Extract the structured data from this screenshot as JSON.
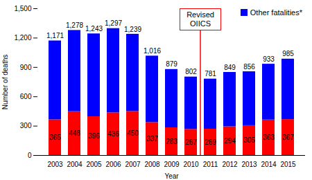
{
  "chart_data": {
    "type": "bar",
    "stacked": true,
    "x_label": "Year",
    "y_label": "Number of deaths",
    "categories": [
      "2003",
      "2004",
      "2005",
      "2006",
      "2007",
      "2008",
      "2009",
      "2010",
      "2011",
      "2012",
      "2013",
      "2014",
      "2015"
    ],
    "series": [
      {
        "color": "#ff0000",
        "values": [
          365,
          448,
          396,
          436,
          450,
          337,
          283,
          267,
          269,
          294,
          305,
          363,
          367
        ],
        "data_labels": true
      },
      {
        "name": "Other fatalities*",
        "color": "#0000ff",
        "values": [
          806,
          830,
          847,
          861,
          789,
          679,
          596,
          535,
          512,
          555,
          551,
          570,
          618
        ]
      }
    ],
    "totals": [
      1171,
      1278,
      1243,
      1297,
      1239,
      1016,
      879,
      802,
      781,
      849,
      856,
      933,
      985
    ],
    "total_labels": [
      "1,171",
      "1,278",
      "1,243",
      "1,297",
      "1,239",
      "1,016",
      "879",
      "802",
      "781",
      "849",
      "856",
      "933",
      "985"
    ],
    "annotations": [
      {
        "text": "Revised OIICS",
        "after": "2010",
        "color": "#ff0000"
      }
    ],
    "ylim": [
      0,
      1500
    ],
    "yticks": [
      0,
      300,
      600,
      900,
      {
        "value": 1200,
        "label": "1,200"
      },
      {
        "value": 1500,
        "label": "1,500"
      }
    ],
    "legend": "top-right",
    "grid": false
  }
}
